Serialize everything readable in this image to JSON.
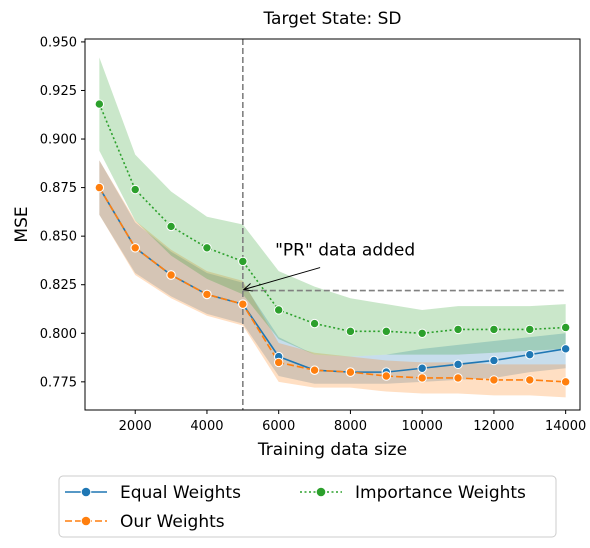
{
  "chart_data": {
    "type": "line",
    "title": "Target State: SD",
    "xlabel": "Training data size",
    "ylabel": "MSE",
    "xlim": [
      600,
      14400
    ],
    "ylim": [
      0.7605,
      0.9515
    ],
    "xticks": [
      2000,
      4000,
      6000,
      8000,
      10000,
      12000,
      14000
    ],
    "yticks": [
      0.775,
      0.8,
      0.825,
      0.85,
      0.875,
      0.9,
      0.925,
      0.95
    ],
    "x": [
      1000,
      2000,
      3000,
      4000,
      5000,
      6000,
      7000,
      8000,
      9000,
      10000,
      11000,
      12000,
      13000,
      14000
    ],
    "series": [
      {
        "name": "Equal Weights",
        "color": "#1f77b4",
        "line_style": "solid",
        "values": [
          0.875,
          0.844,
          0.83,
          0.82,
          0.815,
          0.788,
          0.781,
          0.78,
          0.78,
          0.782,
          0.784,
          0.786,
          0.789,
          0.792
        ],
        "lower": [
          0.861,
          0.831,
          0.819,
          0.81,
          0.805,
          0.778,
          0.774,
          0.774,
          0.774,
          0.775,
          0.776,
          0.777,
          0.78,
          0.782
        ],
        "upper": [
          0.889,
          0.857,
          0.842,
          0.831,
          0.826,
          0.798,
          0.789,
          0.788,
          0.789,
          0.792,
          0.794,
          0.796,
          0.798,
          0.8
        ]
      },
      {
        "name": "Our Weights",
        "color": "#ff7f0e",
        "line_style": "dashed",
        "values": [
          0.875,
          0.844,
          0.83,
          0.82,
          0.815,
          0.785,
          0.781,
          0.78,
          0.778,
          0.777,
          0.777,
          0.776,
          0.776,
          0.775
        ],
        "lower": [
          0.861,
          0.83,
          0.818,
          0.809,
          0.804,
          0.775,
          0.772,
          0.772,
          0.77,
          0.769,
          0.769,
          0.768,
          0.768,
          0.767
        ],
        "upper": [
          0.889,
          0.858,
          0.843,
          0.832,
          0.827,
          0.795,
          0.79,
          0.788,
          0.786,
          0.785,
          0.785,
          0.784,
          0.784,
          0.784
        ]
      },
      {
        "name": "Importance Weights",
        "color": "#2ca02c",
        "line_style": "dotted",
        "values": [
          0.918,
          0.874,
          0.855,
          0.844,
          0.837,
          0.812,
          0.805,
          0.801,
          0.801,
          0.8,
          0.802,
          0.802,
          0.802,
          0.803
        ],
        "lower": [
          0.894,
          0.858,
          0.84,
          0.828,
          0.82,
          0.797,
          0.789,
          0.788,
          0.789,
          0.789,
          0.789,
          0.79,
          0.791,
          0.792
        ],
        "upper": [
          0.942,
          0.892,
          0.873,
          0.86,
          0.856,
          0.832,
          0.824,
          0.818,
          0.815,
          0.812,
          0.814,
          0.814,
          0.814,
          0.815
        ]
      }
    ],
    "reference_lines": {
      "vertical_x": 5000,
      "horizontal_y": 0.822,
      "horizontal_from_x": 5000,
      "horizontal_to_x": 14000,
      "color": "#808080"
    },
    "annotation": {
      "text": "\"PR\" data added",
      "text_x": 5900,
      "text_y": 0.84,
      "arrow_to_x": 5000,
      "arrow_to_y": 0.822
    },
    "band_opacity": 0.25,
    "grid": false,
    "legend": {
      "placement": "below plot",
      "entries": [
        "Equal Weights",
        "Importance Weights",
        "Our Weights"
      ]
    }
  }
}
